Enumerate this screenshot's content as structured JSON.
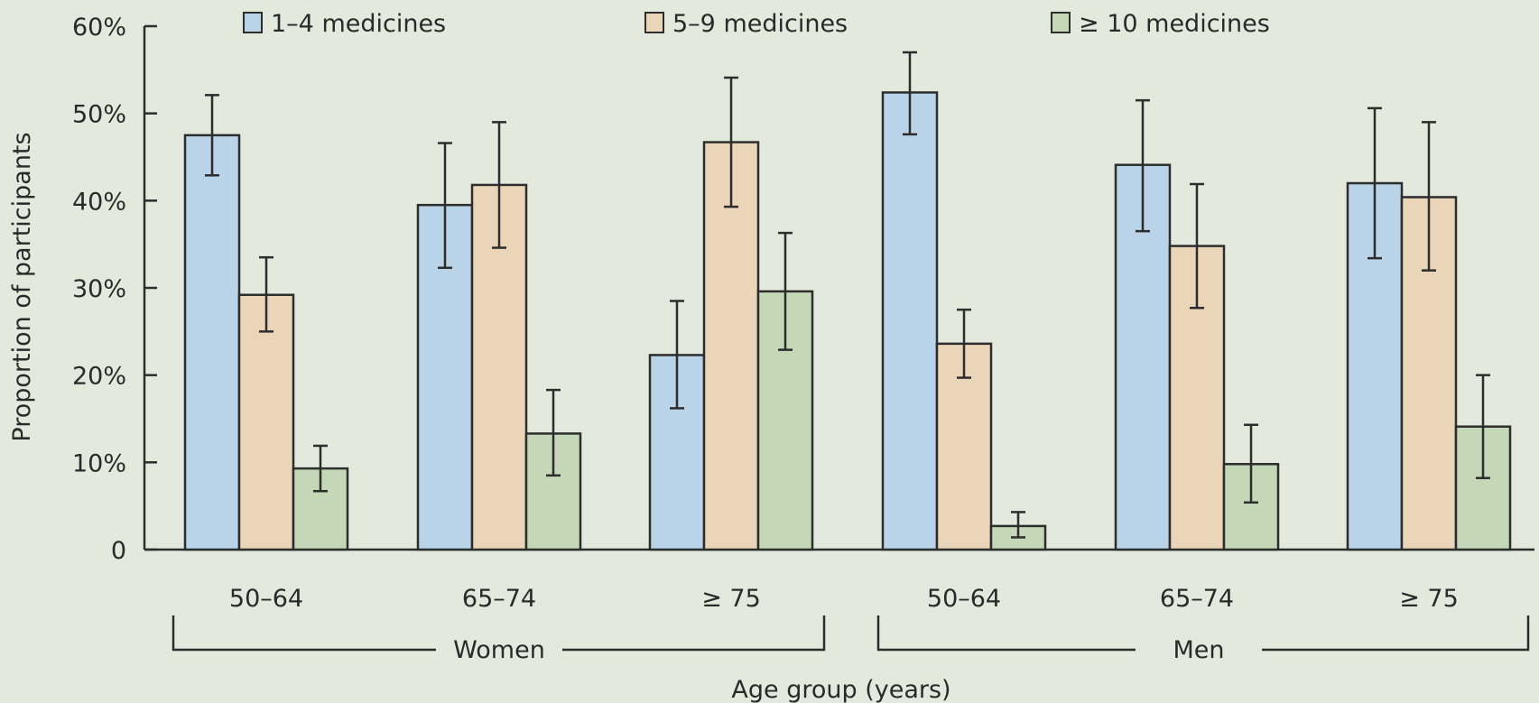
{
  "chart_data": {
    "type": "bar",
    "ylabel": "Proportion of participants",
    "xlabel": "Age group (years)",
    "ylim": [
      0,
      60
    ],
    "yticks": [
      0,
      10,
      20,
      30,
      40,
      50,
      60
    ],
    "ytick_labels": [
      "0",
      "10%",
      "20%",
      "30%",
      "40%",
      "50%",
      "60%"
    ],
    "categories": [
      "50–64",
      "65–74",
      "≥ 75",
      "50–64",
      "65–74",
      "≥ 75"
    ],
    "groups": [
      {
        "label": "Women",
        "categories": [
          0,
          1,
          2
        ]
      },
      {
        "label": "Men",
        "categories": [
          3,
          4,
          5
        ]
      }
    ],
    "series": [
      {
        "name": "1–4 medicines",
        "color": "#b9d3e8",
        "values": [
          47.5,
          39.5,
          22.3,
          52.4,
          44.1,
          42.0
        ],
        "err_low": [
          42.9,
          32.3,
          16.2,
          47.6,
          36.5,
          33.4
        ],
        "err_high": [
          52.1,
          46.6,
          28.5,
          57.0,
          51.5,
          50.6
        ]
      },
      {
        "name": "5–9 medicines",
        "color": "#ebd5b8",
        "values": [
          29.2,
          41.8,
          46.7,
          23.6,
          34.8,
          40.4
        ],
        "err_low": [
          25.0,
          34.6,
          39.3,
          19.7,
          27.7,
          32.0
        ],
        "err_high": [
          33.5,
          49.0,
          54.1,
          27.5,
          41.9,
          49.0
        ]
      },
      {
        "name": "≥ 10 medicines",
        "color": "#c4d8b8",
        "values": [
          9.3,
          13.3,
          29.6,
          2.7,
          9.8,
          14.1
        ],
        "err_low": [
          6.7,
          8.5,
          22.9,
          1.4,
          5.4,
          8.2
        ],
        "err_high": [
          11.9,
          18.3,
          36.3,
          4.3,
          14.3,
          20.0
        ]
      }
    ],
    "legend": {
      "position": "top"
    },
    "grid": false,
    "error_bars": true
  }
}
